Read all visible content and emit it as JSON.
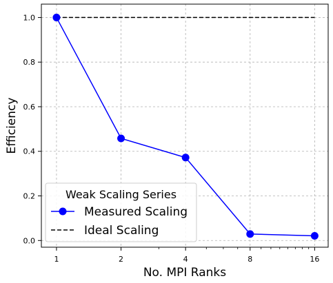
{
  "chart_data": {
    "type": "line",
    "xlabel": "No. MPI Ranks",
    "ylabel": "Efficiency",
    "x_scale": "log2",
    "x_ticks": [
      1,
      2,
      4,
      8,
      16
    ],
    "x_tick_labels": [
      "1",
      "2",
      "4",
      "8",
      "16"
    ],
    "y_ticks": [
      0.0,
      0.2,
      0.4,
      0.6,
      0.8,
      1.0
    ],
    "y_tick_labels": [
      "0.0",
      "0.2",
      "0.4",
      "0.6",
      "0.8",
      "1.0"
    ],
    "xlim": [
      0.85,
      18.5
    ],
    "ylim": [
      -0.03,
      1.06
    ],
    "grid": true,
    "legend": {
      "title": "Weak Scaling Series",
      "placement": "lower-left"
    },
    "series": [
      {
        "name": "Measured Scaling",
        "color": "#0000ff",
        "style": "solid",
        "marker": "circle",
        "x": [
          1,
          2,
          4,
          8,
          16
        ],
        "values": [
          1.0,
          0.458,
          0.372,
          0.029,
          0.021
        ]
      },
      {
        "name": "Ideal Scaling",
        "color": "#000000",
        "style": "dashed",
        "marker": "none",
        "x": [
          1,
          16
        ],
        "values": [
          1.0,
          1.0
        ]
      }
    ]
  }
}
